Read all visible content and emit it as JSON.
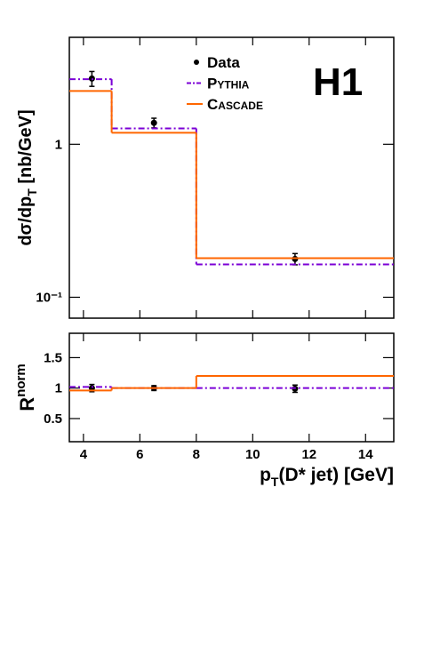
{
  "chart_data": [
    {
      "type": "step",
      "ylabel": [
        "dσ/dp",
        "T",
        " [nb/GeV]"
      ],
      "annotation": "H1",
      "xlim": [
        3.5,
        15
      ],
      "xticks": [
        4,
        6,
        8,
        10,
        12,
        14
      ],
      "show_xtick_labels": false,
      "log_y": true,
      "ylim": [
        0.073,
        5
      ],
      "yticks": [
        {
          "value": 0.1,
          "label": "10⁻¹"
        },
        1
      ],
      "legend": "top",
      "series": [
        {
          "name": "Data",
          "color": "#000000",
          "x": [
            4.3,
            6.5,
            11.5
          ],
          "values": [
            2.69,
            1.38,
            0.178
          ],
          "errors": [
            0.3,
            0.1,
            0.015
          ]
        },
        {
          "name": "Pythia",
          "color": "#7b00d6",
          "dash": true,
          "bins": [
            3.5,
            5,
            8,
            15
          ],
          "values": [
            2.66,
            1.27,
            0.164
          ]
        },
        {
          "name": "Cascade",
          "color": "#ff6600",
          "bins": [
            3.5,
            5,
            8,
            15
          ],
          "values": [
            2.23,
            1.19,
            0.18
          ]
        }
      ]
    },
    {
      "type": "step",
      "ylabel": [
        "R",
        "norm"
      ],
      "xlabel": [
        "p",
        "T",
        "(D* jet)  [GeV]"
      ],
      "xlim": [
        3.5,
        15
      ],
      "xticks": [
        4,
        6,
        8,
        10,
        12,
        14
      ],
      "show_xtick_labels": true,
      "log_y": false,
      "ylim": [
        0.12,
        1.9
      ],
      "yticks": [
        0.5,
        1,
        1.5
      ],
      "series": [
        {
          "color": "#000000",
          "x": [
            4.3,
            6.5,
            11.5
          ],
          "values": [
            1.0,
            1.0,
            0.99
          ],
          "errors": [
            0.06,
            0.04,
            0.06
          ]
        },
        {
          "color": "#7b00d6",
          "dash": true,
          "bins": [
            3.5,
            5,
            8,
            15
          ],
          "values": [
            1.02,
            1.0,
            1.0
          ]
        },
        {
          "color": "#ff6600",
          "bins": [
            3.5,
            5,
            8,
            15
          ],
          "values": [
            0.96,
            1.0,
            1.2
          ]
        }
      ]
    }
  ]
}
